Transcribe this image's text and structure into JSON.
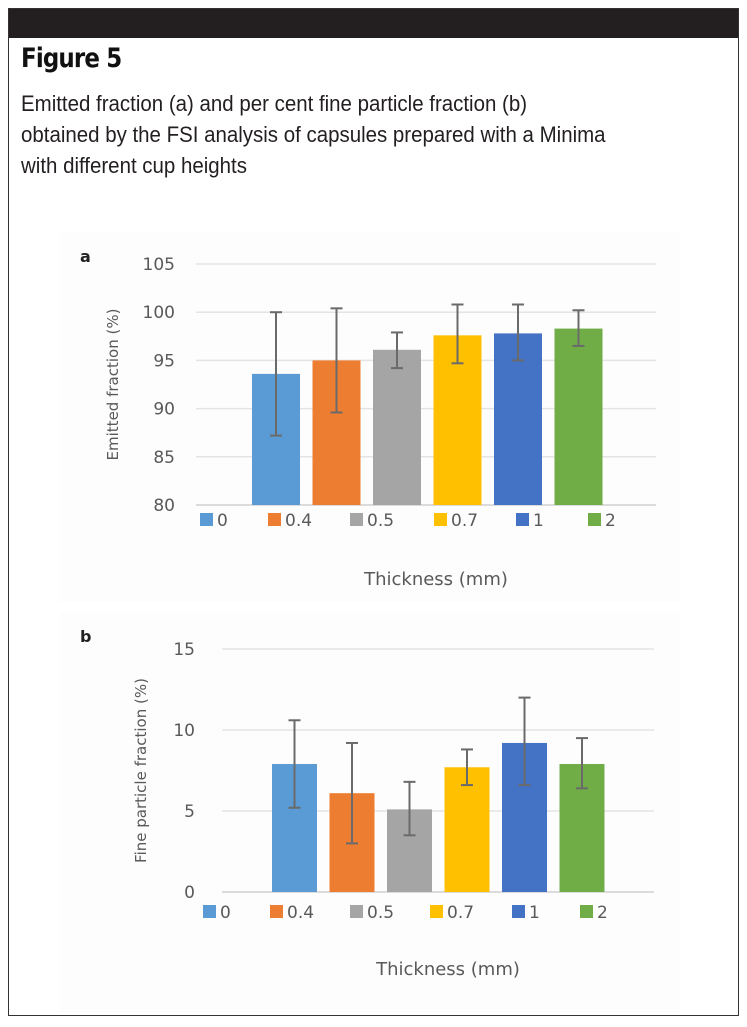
{
  "figure": {
    "title": "Figure 5",
    "caption": [
      "Emitted fraction (a) and per cent fine particle fraction (b)",
      "obtained by the FSI analysis of capsules prepared with a Minima",
      "with different cup heights"
    ]
  },
  "chart_data": [
    {
      "type": "bar",
      "panel": "a",
      "title": "",
      "xlabel": "Thickness (mm)",
      "ylabel": "Emitted fraction (%)",
      "ylim": [
        80,
        105
      ],
      "yticks": [
        80,
        85,
        90,
        95,
        100,
        105
      ],
      "grid": true,
      "legend_position": "bottom",
      "categories": [
        "0",
        "0.4",
        "0.5",
        "0.7",
        "1",
        "2"
      ],
      "colors": [
        "#5b9bd5",
        "#ed7d31",
        "#a5a5a5",
        "#ffc000",
        "#4472c4",
        "#70ad47"
      ],
      "values": [
        93.6,
        95.0,
        96.1,
        97.6,
        97.8,
        98.3
      ],
      "error_low": [
        87.2,
        89.6,
        94.2,
        94.7,
        95.0,
        96.5
      ],
      "error_high": [
        100.0,
        100.4,
        97.9,
        100.8,
        100.8,
        100.2
      ]
    },
    {
      "type": "bar",
      "panel": "b",
      "title": "",
      "xlabel": "Thickness (mm)",
      "ylabel": "Fine particle fraction (%)",
      "ylim": [
        0,
        15
      ],
      "yticks": [
        0,
        5,
        10,
        15
      ],
      "grid": true,
      "legend_position": "bottom",
      "categories": [
        "0",
        "0.4",
        "0.5",
        "0.7",
        "1",
        "2"
      ],
      "colors": [
        "#5b9bd5",
        "#ed7d31",
        "#a5a5a5",
        "#ffc000",
        "#4472c4",
        "#70ad47"
      ],
      "values": [
        7.9,
        6.1,
        5.1,
        7.7,
        9.2,
        7.9
      ],
      "error_low": [
        5.2,
        3.0,
        3.5,
        6.6,
        6.6,
        6.4
      ],
      "error_high": [
        10.6,
        9.2,
        6.8,
        8.8,
        12.0,
        9.5
      ]
    }
  ]
}
